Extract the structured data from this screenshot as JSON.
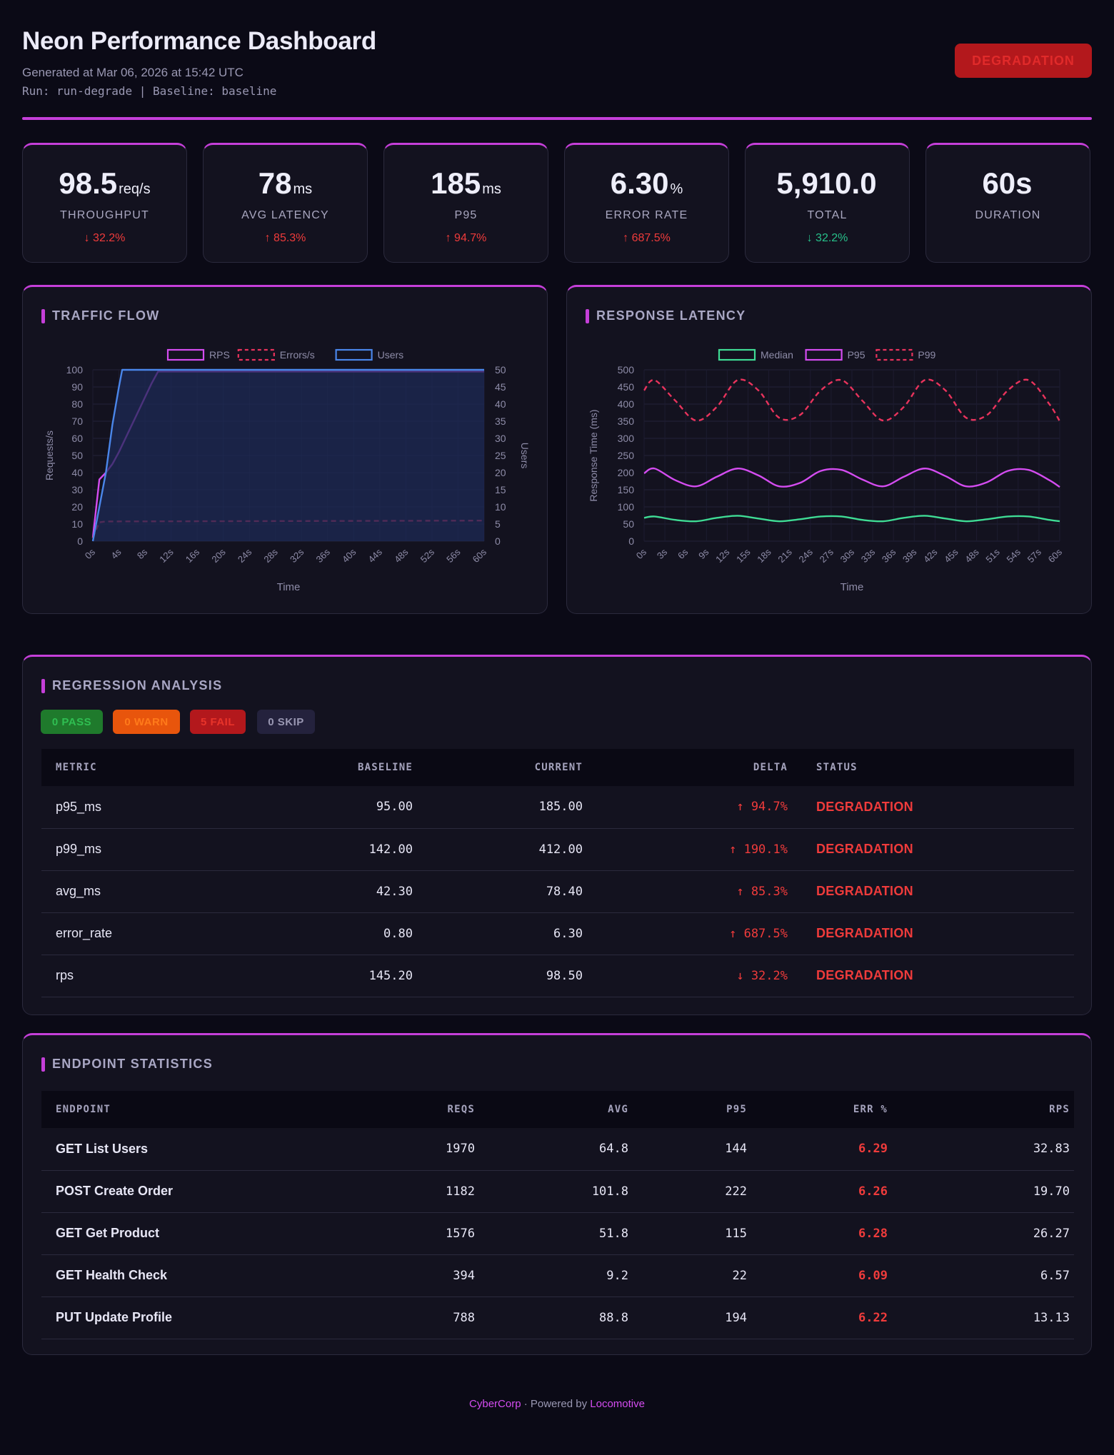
{
  "header": {
    "title": "Neon Performance Dashboard",
    "generated": "Generated at Mar 06, 2026 at 15:42 UTC",
    "run_line": "Run: run-degrade | Baseline: baseline",
    "status_badge": "DEGRADATION"
  },
  "kpis": [
    {
      "value": "98.5",
      "unit": "req/s",
      "label": "THROUGHPUT",
      "delta": "↓ 32.2%",
      "delta_color": "red"
    },
    {
      "value": "78",
      "unit": "ms",
      "label": "AVG LATENCY",
      "delta": "↑ 85.3%",
      "delta_color": "red"
    },
    {
      "value": "185",
      "unit": "ms",
      "label": "P95",
      "delta": "↑ 94.7%",
      "delta_color": "red"
    },
    {
      "value": "6.30",
      "unit": "%",
      "label": "ERROR RATE",
      "delta": "↑ 687.5%",
      "delta_color": "red"
    },
    {
      "value": "5,910.0",
      "unit": "",
      "label": "TOTAL",
      "delta": "↓ 32.2%",
      "delta_color": "green"
    },
    {
      "value": "60s",
      "unit": "",
      "label": "DURATION",
      "delta": "",
      "delta_color": ""
    }
  ],
  "traffic": {
    "title": "TRAFFIC FLOW"
  },
  "latency": {
    "title": "RESPONSE LATENCY"
  },
  "chart_data": [
    {
      "type": "line",
      "title": "",
      "xlabel": "Time",
      "ylabel": "Requests/s",
      "y2label": "Users",
      "ylim": [
        0,
        100
      ],
      "y2lim": [
        0,
        50
      ],
      "yticks": [
        0,
        10,
        20,
        30,
        40,
        50,
        60,
        70,
        80,
        90,
        100
      ],
      "y2ticks": [
        0,
        5,
        10,
        15,
        20,
        25,
        30,
        35,
        40,
        45,
        50
      ],
      "xticks": [
        "0s",
        "4s",
        "8s",
        "12s",
        "16s",
        "20s",
        "24s",
        "28s",
        "32s",
        "36s",
        "40s",
        "44s",
        "48s",
        "52s",
        "56s",
        "60s"
      ],
      "legend": "top",
      "series": [
        {
          "name": "RPS",
          "axis": "left",
          "color": "#d44cf0",
          "x": [
            0,
            1,
            2,
            3,
            4,
            5,
            6,
            7,
            8,
            9,
            10,
            60
          ],
          "values": [
            2,
            36,
            40,
            45,
            52,
            60,
            68,
            76,
            84,
            92,
            99,
            99
          ]
        },
        {
          "name": "Errors/s",
          "axis": "left",
          "color": "#e8335c",
          "dash": true,
          "x": [
            0,
            1,
            2,
            60
          ],
          "values": [
            2,
            11,
            11.5,
            12
          ]
        },
        {
          "name": "Users",
          "axis": "right",
          "color": "#4a86ea",
          "fill": true,
          "x": [
            0,
            1,
            2,
            3,
            4,
            4.5,
            60
          ],
          "values": [
            0,
            10,
            20,
            34,
            45,
            50,
            50
          ]
        }
      ]
    },
    {
      "type": "line",
      "title": "",
      "xlabel": "Time",
      "ylabel": "Response Time (ms)",
      "ylim": [
        0,
        500
      ],
      "yticks": [
        0,
        50,
        100,
        150,
        200,
        250,
        300,
        350,
        400,
        450,
        500
      ],
      "xticks": [
        "0s",
        "3s",
        "6s",
        "9s",
        "12s",
        "15s",
        "18s",
        "21s",
        "24s",
        "27s",
        "30s",
        "33s",
        "36s",
        "39s",
        "42s",
        "45s",
        "48s",
        "51s",
        "54s",
        "57s",
        "60s"
      ],
      "legend": "top",
      "series": [
        {
          "name": "Median",
          "color": "#3fdc95",
          "x": [
            0,
            1.5,
            4.5,
            7.5,
            10.5,
            13.5,
            16.5,
            19.5,
            22.5,
            25.5,
            28.5,
            31.5,
            34.5,
            37.5,
            40.5,
            43.5,
            46.5,
            49.5,
            52.5,
            55.5,
            58.5,
            60
          ],
          "values": [
            68,
            72,
            62,
            58,
            68,
            74,
            66,
            58,
            64,
            72,
            72,
            62,
            58,
            68,
            74,
            66,
            58,
            64,
            72,
            72,
            62,
            58
          ]
        },
        {
          "name": "P95",
          "color": "#d44cf0",
          "x": [
            0,
            1.5,
            4.5,
            7.5,
            10.5,
            13.5,
            16.5,
            19.5,
            22.5,
            25.5,
            28.5,
            31.5,
            34.5,
            37.5,
            40.5,
            43.5,
            46.5,
            49.5,
            52.5,
            55.5,
            58.5,
            60
          ],
          "values": [
            198,
            212,
            178,
            160,
            188,
            212,
            192,
            160,
            170,
            205,
            208,
            180,
            160,
            188,
            212,
            190,
            160,
            172,
            205,
            208,
            178,
            158
          ]
        },
        {
          "name": "P99",
          "color": "#e8335c",
          "dash": true,
          "x": [
            0,
            1.5,
            4.5,
            7.5,
            10.5,
            13.5,
            16.5,
            19.5,
            22.5,
            25.5,
            28.5,
            31.5,
            34.5,
            37.5,
            40.5,
            43.5,
            46.5,
            49.5,
            52.5,
            55.5,
            58.5,
            60
          ],
          "values": [
            440,
            470,
            410,
            352,
            392,
            470,
            440,
            360,
            368,
            440,
            470,
            410,
            352,
            392,
            470,
            440,
            360,
            368,
            440,
            470,
            400,
            350
          ]
        }
      ]
    }
  ],
  "regression": {
    "title": "REGRESSION ANALYSIS",
    "chips": [
      {
        "label": "0 PASS",
        "bg": "#1f7a2c",
        "fg": "#2fbf52"
      },
      {
        "label": "0 WARN",
        "bg": "#e8550c",
        "fg": "#ff7a1a"
      },
      {
        "label": "5 FAIL",
        "bg": "#b3181c",
        "fg": "#e8332a"
      },
      {
        "label": "0 SKIP",
        "bg": "#24223d",
        "fg": "#9a98b3"
      }
    ],
    "columns": [
      "METRIC",
      "BASELINE",
      "CURRENT",
      "DELTA",
      "STATUS"
    ],
    "rows": [
      {
        "metric": "p95_ms",
        "baseline": "95.00",
        "current": "185.00",
        "delta": "↑ 94.7%",
        "status": "DEGRADATION"
      },
      {
        "metric": "p99_ms",
        "baseline": "142.00",
        "current": "412.00",
        "delta": "↑ 190.1%",
        "status": "DEGRADATION"
      },
      {
        "metric": "avg_ms",
        "baseline": "42.30",
        "current": "78.40",
        "delta": "↑ 85.3%",
        "status": "DEGRADATION"
      },
      {
        "metric": "error_rate",
        "baseline": "0.80",
        "current": "6.30",
        "delta": "↑ 687.5%",
        "status": "DEGRADATION"
      },
      {
        "metric": "rps",
        "baseline": "145.20",
        "current": "98.50",
        "delta": "↓ 32.2%",
        "status": "DEGRADATION"
      }
    ]
  },
  "endpoints": {
    "title": "ENDPOINT STATISTICS",
    "columns": [
      "ENDPOINT",
      "REQS",
      "AVG",
      "P95",
      "ERR %",
      "RPS"
    ],
    "rows": [
      {
        "name": "GET List Users",
        "reqs": "1970",
        "avg": "64.8",
        "p95": "144",
        "err": "6.29",
        "rps": "32.83"
      },
      {
        "name": "POST Create Order",
        "reqs": "1182",
        "avg": "101.8",
        "p95": "222",
        "err": "6.26",
        "rps": "19.70"
      },
      {
        "name": "GET Get Product",
        "reqs": "1576",
        "avg": "51.8",
        "p95": "115",
        "err": "6.28",
        "rps": "26.27"
      },
      {
        "name": "GET Health Check",
        "reqs": "394",
        "avg": "9.2",
        "p95": "22",
        "err": "6.09",
        "rps": "6.57"
      },
      {
        "name": "PUT Update Profile",
        "reqs": "788",
        "avg": "88.8",
        "p95": "194",
        "err": "6.22",
        "rps": "13.13"
      }
    ]
  },
  "footer": {
    "company": "CyberCorp",
    "separator": " · Powered by ",
    "product": "Locomotive"
  }
}
